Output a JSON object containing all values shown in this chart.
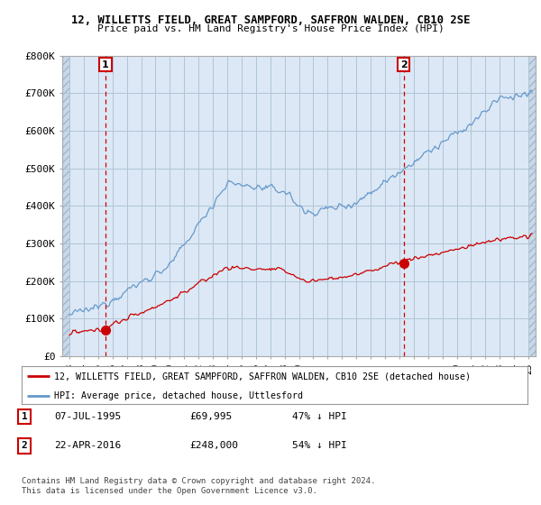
{
  "title1": "12, WILLETTS FIELD, GREAT SAMPFORD, SAFFRON WALDEN, CB10 2SE",
  "title2": "Price paid vs. HM Land Registry's House Price Index (HPI)",
  "ylim": [
    0,
    800000
  ],
  "yticks": [
    0,
    100000,
    200000,
    300000,
    400000,
    500000,
    600000,
    700000,
    800000
  ],
  "ytick_labels": [
    "£0",
    "£100K",
    "£200K",
    "£300K",
    "£400K",
    "£500K",
    "£600K",
    "£700K",
    "£800K"
  ],
  "xlim_start": 1992.5,
  "xlim_end": 2025.5,
  "sale1_date": 1995.52,
  "sale1_price": 69995,
  "sale1_label": "1",
  "sale2_date": 2016.31,
  "sale2_price": 248000,
  "sale2_label": "2",
  "property_line_color": "#cc0000",
  "hpi_line_color": "#6699cc",
  "dashed_line_color": "#cc0000",
  "chart_bg_color": "#dce8f5",
  "background_color": "#ffffff",
  "grid_color": "#b0c4d8",
  "hatch_color": "#c8d8e8",
  "legend_property": "12, WILLETTS FIELD, GREAT SAMPFORD, SAFFRON WALDEN, CB10 2SE (detached house)",
  "legend_hpi": "HPI: Average price, detached house, Uttlesford",
  "annotation1_date": "07-JUL-1995",
  "annotation1_price": "£69,995",
  "annotation1_hpi": "47% ↓ HPI",
  "annotation2_date": "22-APR-2016",
  "annotation2_price": "£248,000",
  "annotation2_hpi": "54% ↓ HPI",
  "footnote": "Contains HM Land Registry data © Crown copyright and database right 2024.\nThis data is licensed under the Open Government Licence v3.0."
}
